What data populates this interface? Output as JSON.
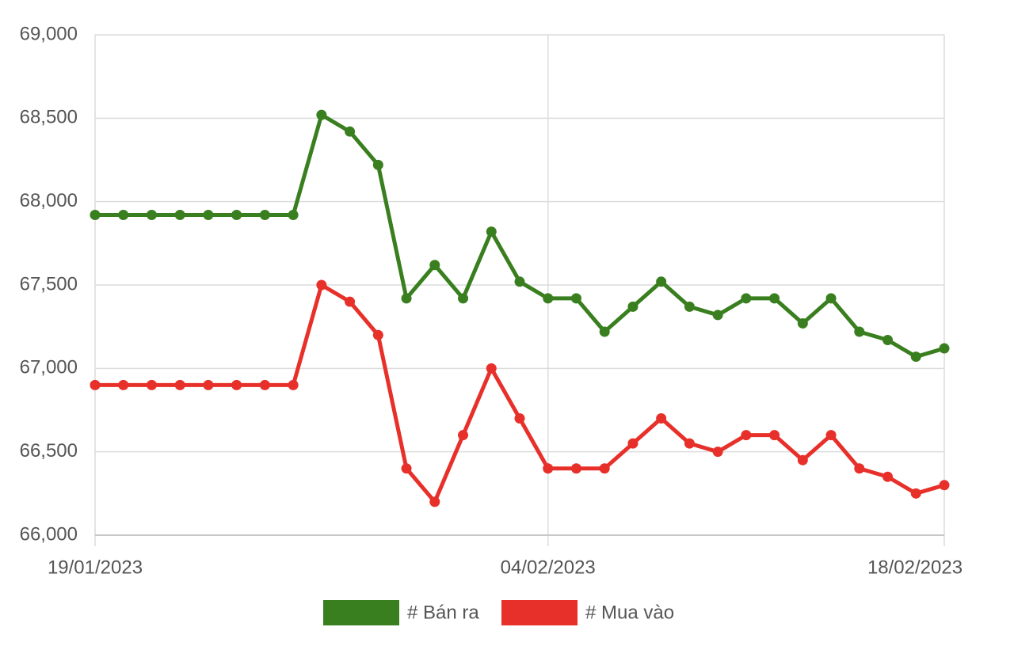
{
  "chart_data": {
    "type": "line",
    "categories": [
      "19/01/2023",
      null,
      null,
      null,
      null,
      null,
      null,
      null,
      null,
      null,
      null,
      null,
      null,
      null,
      null,
      null,
      "04/02/2023",
      null,
      null,
      null,
      null,
      null,
      null,
      null,
      null,
      null,
      null,
      null,
      null,
      null,
      "18/02/2023"
    ],
    "series": [
      {
        "name": "# Bán ra",
        "color": "#3a7f1f",
        "values": [
          67920,
          67920,
          67920,
          67920,
          67920,
          67920,
          67920,
          67920,
          68520,
          68420,
          68220,
          67420,
          67620,
          67420,
          67820,
          67520,
          67420,
          67420,
          67220,
          67370,
          67520,
          67370,
          67320,
          67420,
          67420,
          67270,
          67420,
          67220,
          67170,
          67070,
          67120
        ]
      },
      {
        "name": "# Mua vào",
        "color": "#e8302a",
        "values": [
          66900,
          66900,
          66900,
          66900,
          66900,
          66900,
          66900,
          66900,
          67500,
          67400,
          67200,
          66400,
          66200,
          66600,
          67000,
          66700,
          66400,
          66400,
          66400,
          66550,
          66700,
          66550,
          66500,
          66600,
          66600,
          66450,
          66600,
          66400,
          66350,
          66250,
          66300
        ]
      }
    ],
    "ylim": [
      66000,
      69000
    ],
    "yticks": [
      {
        "value": 66000,
        "label": "66,000"
      },
      {
        "value": 66500,
        "label": "66,500"
      },
      {
        "value": 67000,
        "label": "67,000"
      },
      {
        "value": 67500,
        "label": "67,500"
      },
      {
        "value": 68000,
        "label": "68,000"
      },
      {
        "value": 68500,
        "label": "68,500"
      },
      {
        "value": 69000,
        "label": "69,000"
      }
    ],
    "grid": true,
    "legend": "bottom"
  }
}
